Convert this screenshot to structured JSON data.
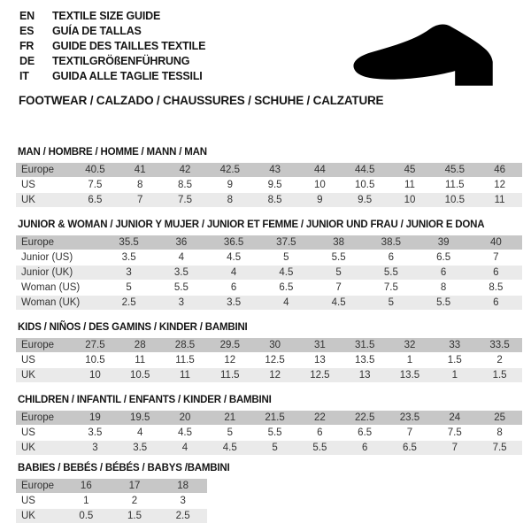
{
  "header": {
    "languages": [
      {
        "code": "EN",
        "label": "TEXTILE SIZE GUIDE"
      },
      {
        "code": "ES",
        "label": "GUÍA DE TALLAS"
      },
      {
        "code": "FR",
        "label": "GUIDE DES TAILLES TEXTILE"
      },
      {
        "code": "DE",
        "label": "TEXTILGRÖßENFÜHRUNG"
      },
      {
        "code": "IT",
        "label": "GUIDA ALLE TAGLIE TESSILI"
      }
    ],
    "category_line": "FOOTWEAR / CALZADO / CHAUSSURES / SCHUHE / CALZATURE",
    "shoe_icon": "dress-shoe-silhouette"
  },
  "colors": {
    "header_row_bg": "#c7c7c7",
    "alt_row_bg": "#eaeaea",
    "cell_text": "#333333",
    "heading_text": "#161616",
    "shoe": "#000000"
  },
  "tables": [
    {
      "id": "man",
      "title": "MAN / HOMBRE / HOMME / MANN / MAN",
      "rows": [
        {
          "label": "Europe",
          "values": [
            "40.5",
            "41",
            "42",
            "42.5",
            "43",
            "44",
            "44.5",
            "45",
            "45.5",
            "46"
          ]
        },
        {
          "label": "US",
          "values": [
            "7.5",
            "8",
            "8.5",
            "9",
            "9.5",
            "10",
            "10.5",
            "11",
            "11.5",
            "12"
          ]
        },
        {
          "label": "UK",
          "values": [
            "6.5",
            "7",
            "7.5",
            "8",
            "8.5",
            "9",
            "9.5",
            "10",
            "10.5",
            "11"
          ]
        }
      ]
    },
    {
      "id": "junior-woman",
      "title": "JUNIOR & WOMAN / JUNIOR Y MUJER / JUNIOR ET FEMME / JUNIOR UND FRAU / JUNIOR E DONA",
      "rows": [
        {
          "label": "Europe",
          "values": [
            "35.5",
            "36",
            "36.5",
            "37.5",
            "38",
            "38.5",
            "39",
            "40"
          ]
        },
        {
          "label": "Junior (US)",
          "values": [
            "3.5",
            "4",
            "4.5",
            "5",
            "5.5",
            "6",
            "6.5",
            "7"
          ]
        },
        {
          "label": "Junior (UK)",
          "values": [
            "3",
            "3.5",
            "4",
            "4.5",
            "5",
            "5.5",
            "6",
            "6"
          ]
        },
        {
          "label": "Woman (US)",
          "values": [
            "5",
            "5.5",
            "6",
            "6.5",
            "7",
            "7.5",
            "8",
            "8.5"
          ]
        },
        {
          "label": "Woman (UK)",
          "values": [
            "2.5",
            "3",
            "3.5",
            "4",
            "4.5",
            "5",
            "5.5",
            "6"
          ]
        }
      ]
    },
    {
      "id": "kids",
      "title": "KIDS / NIÑOS / DES GAMINS / KINDER / BAMBINI",
      "rows": [
        {
          "label": "Europe",
          "values": [
            "27.5",
            "28",
            "28.5",
            "29.5",
            "30",
            "31",
            "31.5",
            "32",
            "33",
            "33.5"
          ]
        },
        {
          "label": "US",
          "values": [
            "10.5",
            "11",
            "11.5",
            "12",
            "12.5",
            "13",
            "13.5",
            "1",
            "1.5",
            "2"
          ]
        },
        {
          "label": "UK",
          "values": [
            "10",
            "10.5",
            "11",
            "11.5",
            "12",
            "12.5",
            "13",
            "13.5",
            "1",
            "1.5"
          ]
        }
      ]
    },
    {
      "id": "children",
      "title": "CHILDREN / INFANTIL / ENFANTS / KINDER / BAMBINI",
      "rows": [
        {
          "label": "Europe",
          "values": [
            "19",
            "19.5",
            "20",
            "21",
            "21.5",
            "22",
            "22.5",
            "23.5",
            "24",
            "25"
          ]
        },
        {
          "label": "US",
          "values": [
            "3.5",
            "4",
            "4.5",
            "5",
            "5.5",
            "6",
            "6.5",
            "7",
            "7.5",
            "8"
          ]
        },
        {
          "label": "UK",
          "values": [
            "3",
            "3.5",
            "4",
            "4.5",
            "5",
            "5.5",
            "6",
            "6.5",
            "7",
            "7.5"
          ]
        }
      ]
    },
    {
      "id": "babies",
      "title": "BABIES / BEBÉS / BÉBÉS / BABYS /BAMBINI",
      "rows": [
        {
          "label": "Europe",
          "values": [
            "16",
            "17",
            "18"
          ]
        },
        {
          "label": "US",
          "values": [
            "1",
            "2",
            "3"
          ]
        },
        {
          "label": "UK",
          "values": [
            "0.5",
            "1.5",
            "2.5"
          ]
        }
      ]
    }
  ]
}
